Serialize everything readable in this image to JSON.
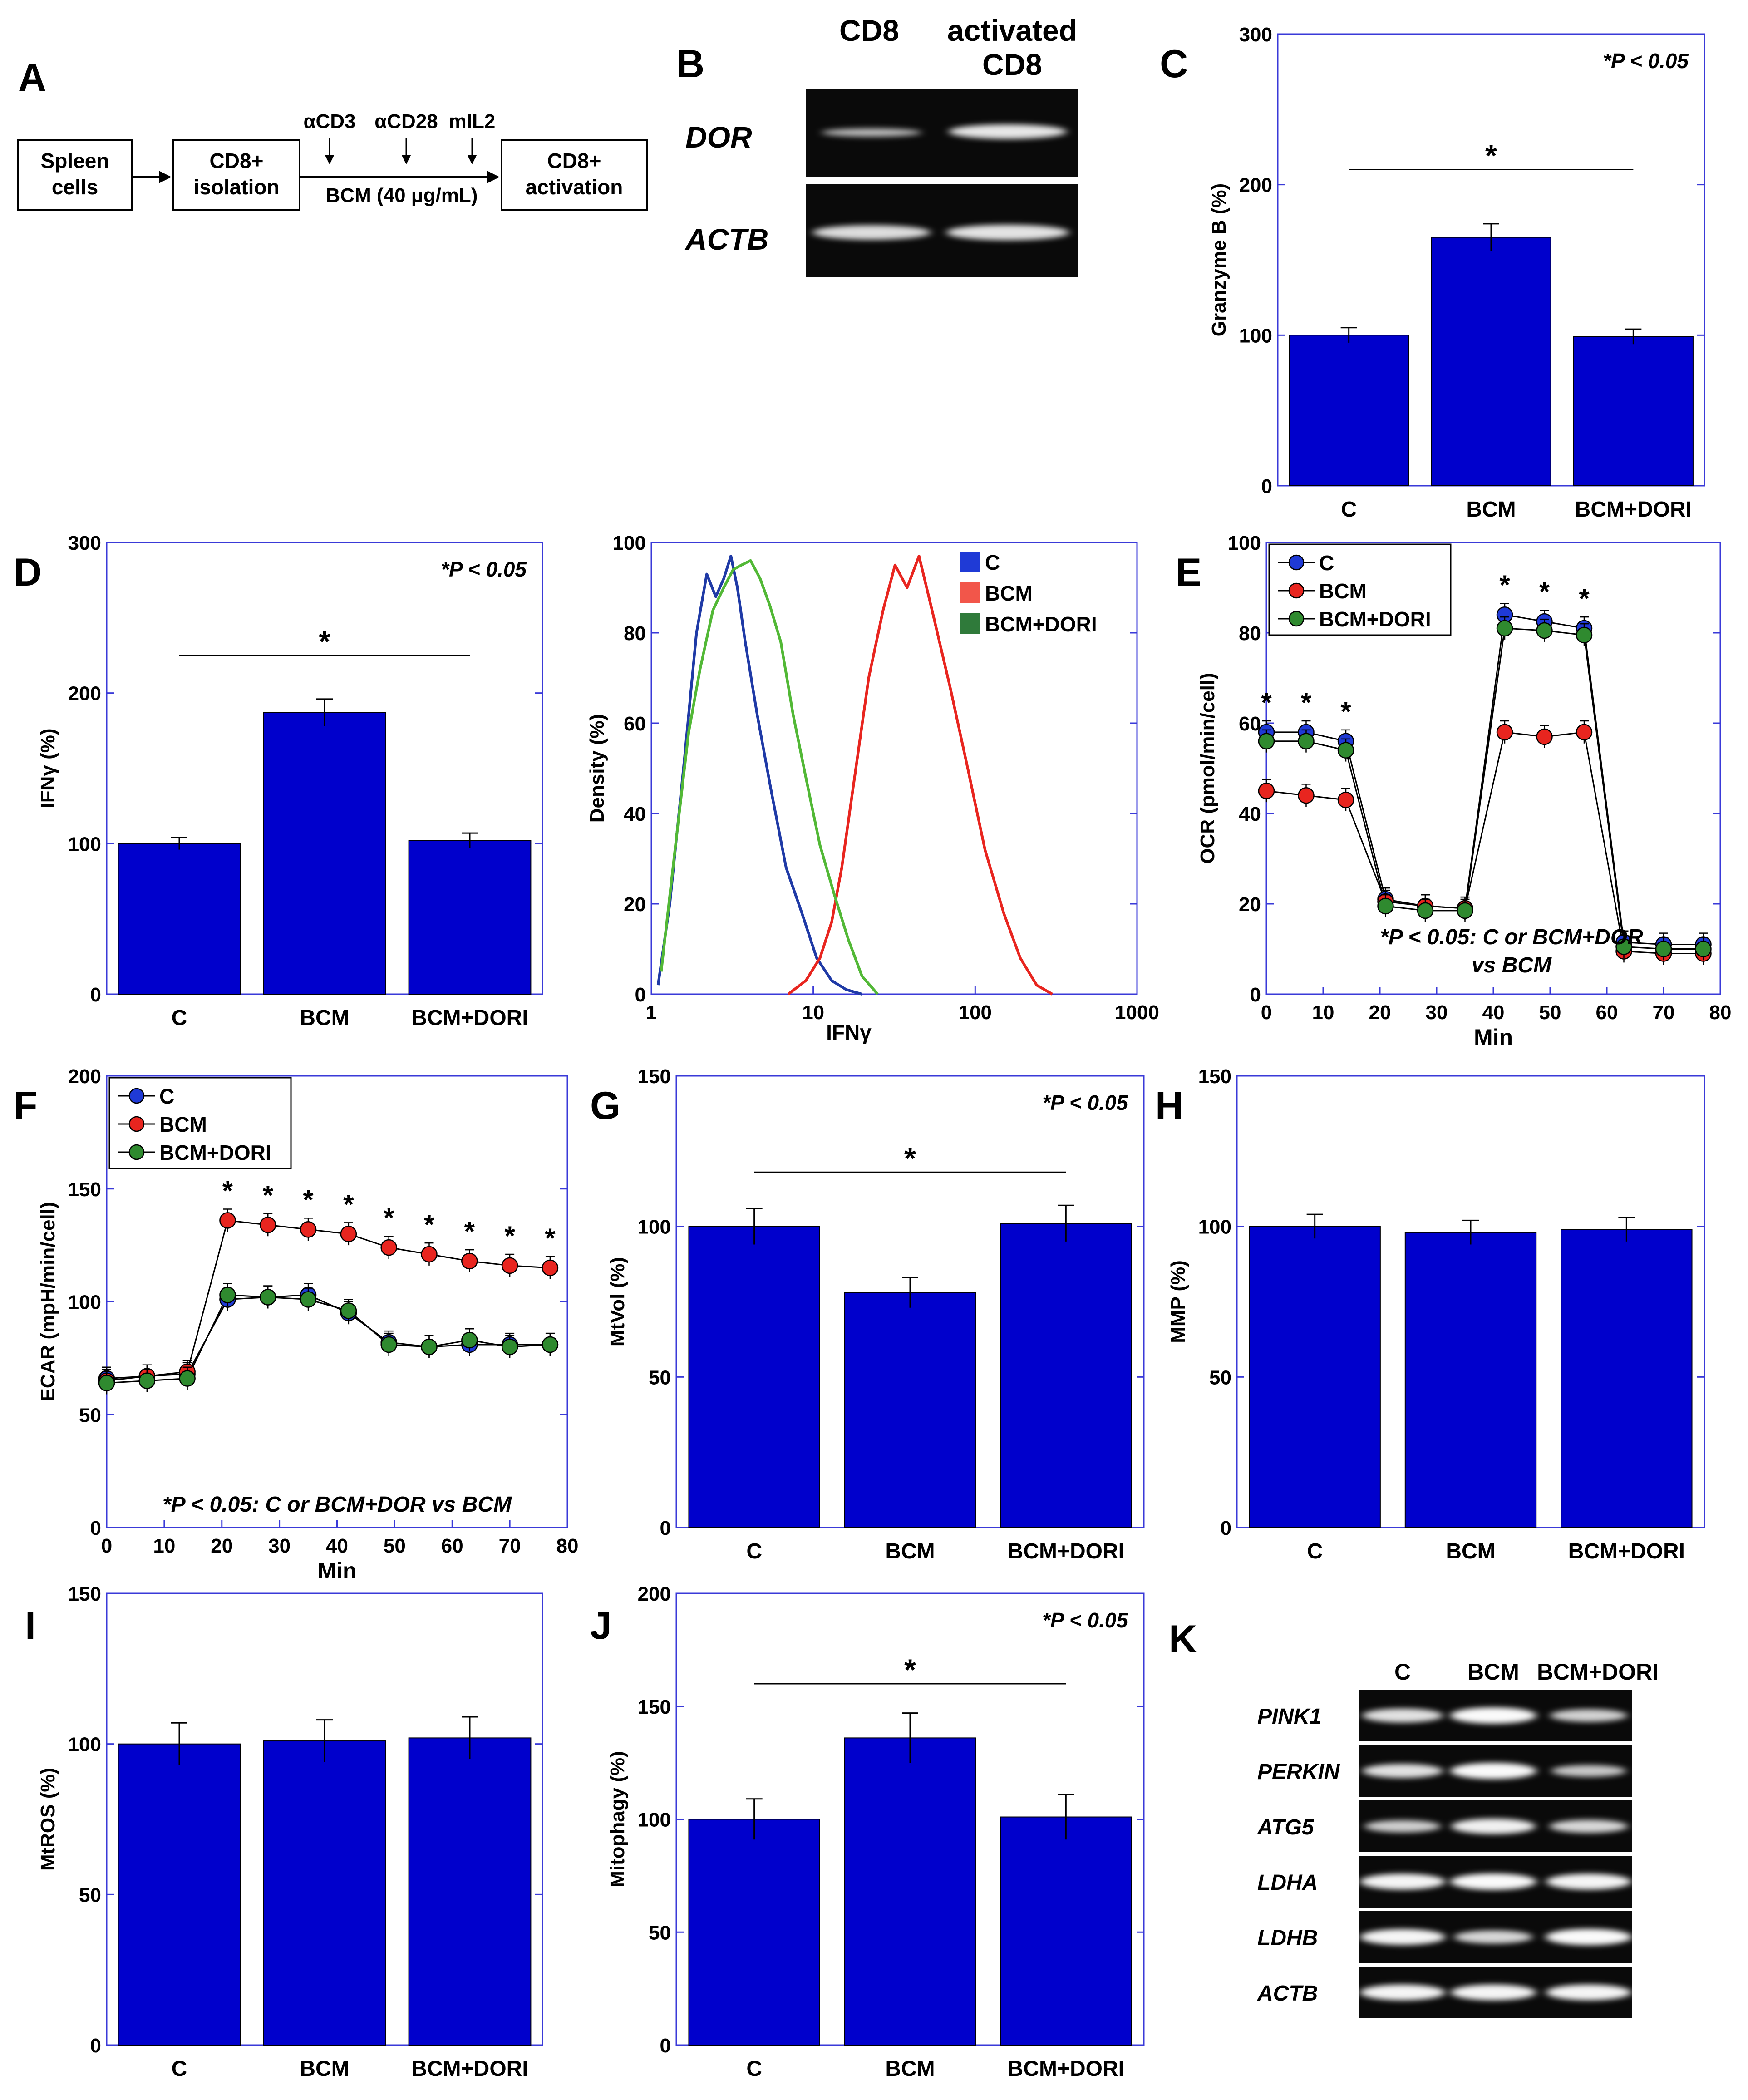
{
  "panel_A": {
    "letter": "A",
    "box1": [
      "Spleen",
      "cells"
    ],
    "box2": [
      "CD8+",
      "isolation"
    ],
    "box3": [
      "CD8+",
      "activation"
    ],
    "treatments": [
      "αCD3",
      "αCD28",
      "mIL2"
    ],
    "bcm_label": "BCM (40 μg/mL)"
  },
  "panel_B": {
    "letter": "B",
    "columns": [
      "CD8",
      "activated",
      "CD8"
    ],
    "rows": [
      "DOR",
      "ACTB"
    ]
  },
  "panel_K": {
    "letter": "K",
    "columns": [
      "C",
      "BCM",
      "BCM+DORI"
    ],
    "rows": [
      "PINK1",
      "PERKIN",
      "ATG5",
      "LDHA",
      "LDHB",
      "ACTB"
    ]
  },
  "chart_data": [
    {
      "id": "C",
      "type": "bar",
      "letter": "C",
      "categories": [
        "C",
        "BCM",
        "BCM+DORI"
      ],
      "values": [
        100,
        165,
        99
      ],
      "errors": [
        5,
        9,
        5
      ],
      "ylabel": "Granzyme B (%)",
      "ylim": [
        0,
        300
      ],
      "yticks": [
        0,
        100,
        200,
        300
      ],
      "annotation": "*P < 0.05",
      "sig_star": "*",
      "sig_y": 210
    },
    {
      "id": "D",
      "type": "bar",
      "letter": "D",
      "categories": [
        "C",
        "BCM",
        "BCM+DORI"
      ],
      "values": [
        100,
        187,
        102
      ],
      "errors": [
        4,
        9,
        5
      ],
      "ylabel": "IFNγ (%)",
      "ylim": [
        0,
        300
      ],
      "yticks": [
        0,
        100,
        200,
        300
      ],
      "annotation": "*P < 0.05",
      "sig_star": "*",
      "sig_y": 225
    },
    {
      "id": "Dflow",
      "type": "line",
      "xlabel": "IFNγ",
      "ylabel": "Density (%)",
      "xscale": "log",
      "xlim": [
        1,
        1000
      ],
      "xticks": [
        1,
        10,
        100,
        1000
      ],
      "ylim": [
        0,
        100
      ],
      "yticks": [
        0,
        20,
        40,
        60,
        80,
        100
      ],
      "legend": "top-right",
      "series": [
        {
          "name": "C",
          "color": "#1f3aa6",
          "x": [
            1.1,
            1.3,
            1.6,
            1.9,
            2.2,
            2.5,
            2.8,
            3.1,
            3.4,
            3.8,
            4.5,
            5.5,
            6.8,
            8.5,
            10.5,
            13,
            16,
            20
          ],
          "y": [
            2,
            20,
            52,
            80,
            93,
            88,
            92,
            97,
            90,
            78,
            62,
            45,
            28,
            18,
            8,
            3,
            1,
            0
          ]
        },
        {
          "name": "BCM",
          "color": "#e8251f",
          "x": [
            7,
            9,
            11,
            13,
            15,
            18,
            22,
            27,
            32,
            38,
            45,
            55,
            70,
            90,
            115,
            150,
            190,
            240,
            300
          ],
          "y": [
            0,
            3,
            8,
            16,
            28,
            48,
            70,
            85,
            95,
            90,
            97,
            84,
            68,
            50,
            32,
            18,
            8,
            2,
            0
          ]
        },
        {
          "name": "BCM+DORI",
          "color": "#52b836",
          "x": [
            1.15,
            1.4,
            1.7,
            2.0,
            2.4,
            2.8,
            3.2,
            3.6,
            4.1,
            4.7,
            5.4,
            6.3,
            7.5,
            9,
            11,
            13.5,
            16.5,
            20,
            25
          ],
          "y": [
            5,
            32,
            58,
            72,
            85,
            90,
            94,
            95,
            96,
            92,
            86,
            78,
            62,
            48,
            33,
            22,
            12,
            4,
            0
          ]
        }
      ]
    },
    {
      "id": "E",
      "type": "line",
      "letter": "E",
      "xlabel": "Min",
      "ylabel": "OCR (pmol/min/cell)",
      "xlim": [
        0,
        80
      ],
      "xticks": [
        0,
        10,
        20,
        30,
        40,
        50,
        60,
        70,
        80
      ],
      "ylim": [
        0,
        100
      ],
      "yticks": [
        0,
        20,
        40,
        60,
        80,
        100
      ],
      "legend": "top-left",
      "annotation_lines": [
        "*P < 0.05: C or BCM+DOR",
        "vs BCM"
      ],
      "stars_x": [
        0,
        7,
        14,
        42,
        49,
        56
      ],
      "series": [
        {
          "name": "C",
          "color": "#1f3ad6",
          "x": [
            0,
            7,
            14,
            21,
            28,
            35,
            42,
            49,
            56,
            63,
            70,
            77
          ],
          "y": [
            58,
            58,
            56,
            21,
            19.5,
            19,
            84,
            82.5,
            81,
            11.5,
            11,
            11
          ]
        },
        {
          "name": "BCM",
          "color": "#e8251f",
          "x": [
            0,
            7,
            14,
            21,
            28,
            35,
            42,
            49,
            56,
            63,
            70,
            77
          ],
          "y": [
            45,
            44,
            43,
            20.5,
            19.5,
            19,
            58,
            57,
            58,
            9.5,
            9,
            9
          ]
        },
        {
          "name": "BCM+DORI",
          "color": "#2f8a2f",
          "x": [
            0,
            7,
            14,
            21,
            28,
            35,
            42,
            49,
            56,
            63,
            70,
            77
          ],
          "y": [
            56,
            56,
            54,
            19.5,
            18.5,
            18.5,
            81,
            80.5,
            79.5,
            10.5,
            10,
            10
          ]
        }
      ]
    },
    {
      "id": "F",
      "type": "line",
      "letter": "F",
      "xlabel": "Min",
      "ylabel": "ECAR (mpH/min/cell)",
      "xlim": [
        0,
        80
      ],
      "xticks": [
        0,
        10,
        20,
        30,
        40,
        50,
        60,
        70,
        80
      ],
      "ylim": [
        0,
        200
      ],
      "yticks": [
        0,
        50,
        100,
        150,
        200
      ],
      "legend": "top-left",
      "annotation_lines": [
        "*P < 0.05: C or BCM+DOR vs BCM"
      ],
      "stars_x": [
        21,
        28,
        35,
        42,
        49,
        56,
        63,
        70,
        77
      ],
      "series": [
        {
          "name": "C",
          "color": "#1f3ad6",
          "x": [
            0,
            7,
            14,
            21,
            28,
            35,
            42,
            49,
            56,
            63,
            70,
            77
          ],
          "y": [
            66,
            67,
            68,
            101,
            102,
            103,
            95,
            82,
            80,
            81,
            81,
            81
          ]
        },
        {
          "name": "BCM",
          "color": "#e8251f",
          "x": [
            0,
            7,
            14,
            21,
            28,
            35,
            42,
            49,
            56,
            63,
            70,
            77
          ],
          "y": [
            65,
            67,
            69,
            136,
            134,
            132,
            130,
            124,
            121,
            118,
            116,
            115
          ]
        },
        {
          "name": "BCM+DORI",
          "color": "#2f8a2f",
          "x": [
            0,
            7,
            14,
            21,
            28,
            35,
            42,
            49,
            56,
            63,
            70,
            77
          ],
          "y": [
            64,
            65,
            66,
            103,
            102,
            101,
            96,
            81,
            80,
            83,
            80,
            81
          ]
        }
      ]
    },
    {
      "id": "G",
      "type": "bar",
      "letter": "G",
      "categories": [
        "C",
        "BCM",
        "BCM+DORI"
      ],
      "values": [
        100,
        78,
        101
      ],
      "errors": [
        6,
        5,
        6
      ],
      "ylabel": "MtVol (%)",
      "ylim": [
        0,
        150
      ],
      "yticks": [
        0,
        50,
        100,
        150
      ],
      "annotation": "*P < 0.05",
      "sig_star": "*",
      "sig_y": 118
    },
    {
      "id": "H",
      "type": "bar",
      "letter": "H",
      "categories": [
        "C",
        "BCM",
        "BCM+DORI"
      ],
      "values": [
        100,
        98,
        99
      ],
      "errors": [
        4,
        4,
        4
      ],
      "ylabel": "MMP (%)",
      "ylim": [
        0,
        150
      ],
      "yticks": [
        0,
        50,
        100,
        150
      ]
    },
    {
      "id": "I",
      "type": "bar",
      "letter": "I",
      "categories": [
        "C",
        "BCM",
        "BCM+DORI"
      ],
      "values": [
        100,
        101,
        102
      ],
      "errors": [
        7,
        7,
        7
      ],
      "ylabel": "MtROS (%)",
      "ylim": [
        0,
        150
      ],
      "yticks": [
        0,
        50,
        100,
        150
      ]
    },
    {
      "id": "J",
      "type": "bar",
      "letter": "J",
      "categories": [
        "C",
        "BCM",
        "BCM+DORI"
      ],
      "values": [
        100,
        136,
        101
      ],
      "errors": [
        9,
        11,
        10
      ],
      "ylabel": "Mitophagy (%)",
      "ylim": [
        0,
        200
      ],
      "yticks": [
        0,
        50,
        100,
        150,
        200
      ],
      "annotation": "*P < 0.05",
      "sig_star": "*",
      "sig_y": 160
    }
  ]
}
